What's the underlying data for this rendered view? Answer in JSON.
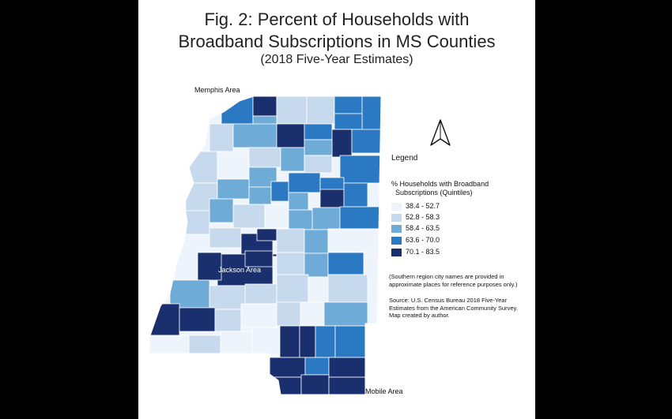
{
  "title": {
    "line1": "Fig. 2: Percent of Households with",
    "line2": "Broadband Subscriptions in MS Counties",
    "line3": "(2018 Five-Year Estimates)"
  },
  "areas": {
    "memphis": "Memphis Area",
    "jackson": "Jackson Area",
    "mobile": "Mobile Area"
  },
  "legend": {
    "title": "Legend",
    "heading_line1": "% Households with Broadband",
    "heading_line2": "Subscriptions (Quintiles)",
    "classes": [
      {
        "label": "38.4 - 52.7",
        "color": "#eef4fb"
      },
      {
        "label": "52.8 - 58.3",
        "color": "#c6d9ed"
      },
      {
        "label": "58.4 - 63.5",
        "color": "#6fabd7"
      },
      {
        "label": "63.6 - 70.0",
        "color": "#2b79c2"
      },
      {
        "label": "70.1 - 83.5",
        "color": "#192f6e"
      }
    ]
  },
  "notes": {
    "region_note_1": "(Southern region city names are provided in",
    "region_note_2": "approximate places for reference purposes only.)",
    "source_1": "Source: U.S. Census Bureau 2018 Five-Year",
    "source_2": "Estimates from the American Community Survey.",
    "source_3": "Map created by author."
  },
  "compass_icon": "north-arrow"
}
